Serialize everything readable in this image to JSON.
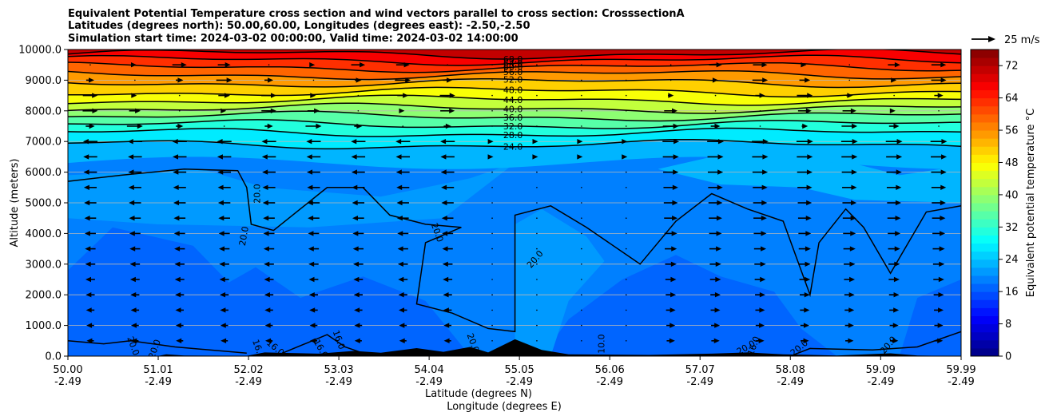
{
  "chart_data": {
    "type": "heatmap",
    "title_lines": [
      "Equivalent Potential Temperature cross section and wind vectors parallel to cross section: CrosssectionA",
      "Latitudes (degrees north): 50.00,60.00, Longitudes (degrees east): -2.50,-2.50",
      "Simulation start time: 2024-03-02 00:00:00, Valid time: 2024-03-02 14:00:00"
    ],
    "xlabel": "Latitude (degrees N)",
    "xlabel2": "Longitude (degrees E)",
    "ylabel": "Altitude (meters)",
    "xlim": [
      50.0,
      59.99
    ],
    "ylim": [
      0,
      10000
    ],
    "grid": "horizontal",
    "x_ticks": [
      {
        "lat": "50.00",
        "lon": "-2.49",
        "v": 50.0
      },
      {
        "lat": "51.01",
        "lon": "-2.49",
        "v": 51.01
      },
      {
        "lat": "52.02",
        "lon": "-2.49",
        "v": 52.02
      },
      {
        "lat": "53.03",
        "lon": "-2.49",
        "v": 53.03
      },
      {
        "lat": "54.04",
        "lon": "-2.49",
        "v": 54.04
      },
      {
        "lat": "55.05",
        "lon": "-2.49",
        "v": 55.05
      },
      {
        "lat": "56.06",
        "lon": "-2.49",
        "v": 56.06
      },
      {
        "lat": "57.07",
        "lon": "-2.49",
        "v": 57.07
      },
      {
        "lat": "58.08",
        "lon": "-2.49",
        "v": 58.08
      },
      {
        "lat": "59.09",
        "lon": "-2.49",
        "v": 59.09
      },
      {
        "lat": "59.99",
        "lon": "-2.49",
        "v": 59.99
      }
    ],
    "y_ticks": [
      "0.0",
      "1000.0",
      "2000.0",
      "3000.0",
      "4000.0",
      "5000.0",
      "6000.0",
      "7000.0",
      "8000.0",
      "9000.0",
      "10000.0"
    ],
    "colorbar": {
      "label": "Equivalent potential temperature $^\\circ$C",
      "label_text": "Equivalent potential temperature °C",
      "range": [
        0,
        76
      ],
      "ticks": [
        "0",
        "8",
        "16",
        "24",
        "32",
        "40",
        "48",
        "56",
        "64",
        "72"
      ],
      "colormap": "jet"
    },
    "contour_labels": [
      "68.0",
      "64.0",
      "60.0",
      "56.0",
      "52.0",
      "48.0",
      "44.0",
      "40.0",
      "36.0",
      "32.0",
      "28.0",
      "24.0",
      "20.0",
      "20.0",
      "20.0",
      "20.0",
      "20.0",
      "16.0",
      "16.0",
      "16.0",
      "16.0",
      "20.0",
      "20.0",
      "16.0",
      "20.0",
      "20.0",
      "20.0",
      "10.0"
    ],
    "quiver_key": "25 m/s",
    "upper_isentrope_levels_km": [
      {
        "theta": 68,
        "z": 9.85
      },
      {
        "theta": 64,
        "z": 9.65
      },
      {
        "theta": 60,
        "z": 9.42
      },
      {
        "theta": 56,
        "z": 9.18
      },
      {
        "theta": 52,
        "z": 8.92
      },
      {
        "theta": 48,
        "z": 8.62
      },
      {
        "theta": 44,
        "z": 8.35
      },
      {
        "theta": 40,
        "z": 8.08
      },
      {
        "theta": 36,
        "z": 7.82
      },
      {
        "theta": 32,
        "z": 7.55
      },
      {
        "theta": 28,
        "z": 7.28
      },
      {
        "theta": 24,
        "z": 6.9
      }
    ]
  }
}
